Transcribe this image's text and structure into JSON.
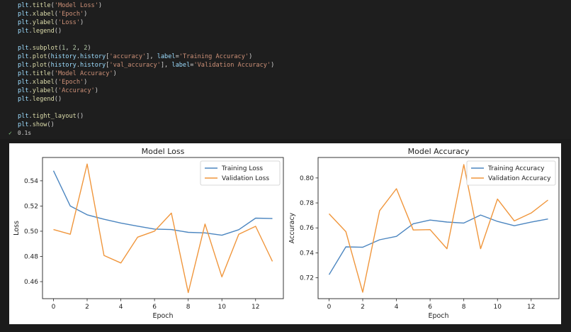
{
  "code": {
    "lines": [
      [
        {
          "t": "plt",
          "c": "tk-var"
        },
        {
          "t": "."
        },
        {
          "t": "title",
          "c": "tk-fn"
        },
        {
          "t": "("
        },
        {
          "t": "'Model Loss'",
          "c": "tk-str"
        },
        {
          "t": ")"
        }
      ],
      [
        {
          "t": "plt",
          "c": "tk-var"
        },
        {
          "t": "."
        },
        {
          "t": "xlabel",
          "c": "tk-fn"
        },
        {
          "t": "("
        },
        {
          "t": "'Epoch'",
          "c": "tk-str"
        },
        {
          "t": ")"
        }
      ],
      [
        {
          "t": "plt",
          "c": "tk-var"
        },
        {
          "t": "."
        },
        {
          "t": "ylabel",
          "c": "tk-fn"
        },
        {
          "t": "("
        },
        {
          "t": "'Loss'",
          "c": "tk-str"
        },
        {
          "t": ")"
        }
      ],
      [
        {
          "t": "plt",
          "c": "tk-var"
        },
        {
          "t": "."
        },
        {
          "t": "legend",
          "c": "tk-fn"
        },
        {
          "t": "()"
        }
      ],
      [],
      [
        {
          "t": "plt",
          "c": "tk-var"
        },
        {
          "t": "."
        },
        {
          "t": "subplot",
          "c": "tk-fn"
        },
        {
          "t": "("
        },
        {
          "t": "1",
          "c": "tk-num"
        },
        {
          "t": ", "
        },
        {
          "t": "2",
          "c": "tk-num"
        },
        {
          "t": ", "
        },
        {
          "t": "2",
          "c": "tk-num"
        },
        {
          "t": ")"
        }
      ],
      [
        {
          "t": "plt",
          "c": "tk-var"
        },
        {
          "t": "."
        },
        {
          "t": "plot",
          "c": "tk-fn"
        },
        {
          "t": "("
        },
        {
          "t": "history",
          "c": "tk-var"
        },
        {
          "t": "."
        },
        {
          "t": "history",
          "c": "tk-var"
        },
        {
          "t": "["
        },
        {
          "t": "'accuracy'",
          "c": "tk-str"
        },
        {
          "t": "], "
        },
        {
          "t": "label",
          "c": "tk-var"
        },
        {
          "t": "="
        },
        {
          "t": "'Training Accuracy'",
          "c": "tk-str"
        },
        {
          "t": ")"
        }
      ],
      [
        {
          "t": "plt",
          "c": "tk-var"
        },
        {
          "t": "."
        },
        {
          "t": "plot",
          "c": "tk-fn"
        },
        {
          "t": "("
        },
        {
          "t": "history",
          "c": "tk-var"
        },
        {
          "t": "."
        },
        {
          "t": "history",
          "c": "tk-var"
        },
        {
          "t": "["
        },
        {
          "t": "'val_accuracy'",
          "c": "tk-str"
        },
        {
          "t": "], "
        },
        {
          "t": "label",
          "c": "tk-var"
        },
        {
          "t": "="
        },
        {
          "t": "'Validation Accuracy'",
          "c": "tk-str"
        },
        {
          "t": ")"
        }
      ],
      [
        {
          "t": "plt",
          "c": "tk-var"
        },
        {
          "t": "."
        },
        {
          "t": "title",
          "c": "tk-fn"
        },
        {
          "t": "("
        },
        {
          "t": "'Model Accuracy'",
          "c": "tk-str"
        },
        {
          "t": ")"
        }
      ],
      [
        {
          "t": "plt",
          "c": "tk-var"
        },
        {
          "t": "."
        },
        {
          "t": "xlabel",
          "c": "tk-fn"
        },
        {
          "t": "("
        },
        {
          "t": "'Epoch'",
          "c": "tk-str"
        },
        {
          "t": ")"
        }
      ],
      [
        {
          "t": "plt",
          "c": "tk-var"
        },
        {
          "t": "."
        },
        {
          "t": "ylabel",
          "c": "tk-fn"
        },
        {
          "t": "("
        },
        {
          "t": "'Accuracy'",
          "c": "tk-str"
        },
        {
          "t": ")"
        }
      ],
      [
        {
          "t": "plt",
          "c": "tk-var"
        },
        {
          "t": "."
        },
        {
          "t": "legend",
          "c": "tk-fn"
        },
        {
          "t": "()"
        }
      ],
      [],
      [
        {
          "t": "plt",
          "c": "tk-var"
        },
        {
          "t": "."
        },
        {
          "t": "tight_layout",
          "c": "tk-fn"
        },
        {
          "t": "()"
        }
      ],
      [
        {
          "t": "plt",
          "c": "tk-var"
        },
        {
          "t": "."
        },
        {
          "t": "show",
          "c": "tk-fn"
        },
        {
          "t": "()"
        }
      ]
    ]
  },
  "status": {
    "check": "✓",
    "time": "0.1s"
  },
  "colors": {
    "training": "#4c86c0",
    "validation": "#f0963c",
    "editor_bg": "#1e1e1e"
  },
  "chart_data": [
    {
      "type": "line",
      "title": "Model Loss",
      "xlabel": "Epoch",
      "ylabel": "Loss",
      "x": [
        0,
        1,
        2,
        3,
        4,
        5,
        6,
        7,
        8,
        9,
        10,
        11,
        12,
        13
      ],
      "xlim": [
        -0.65,
        13.65
      ],
      "ylim": [
        0.4465,
        0.5585
      ],
      "xticks": [
        0,
        2,
        4,
        6,
        8,
        10,
        12
      ],
      "yticks": [
        0.46,
        0.48,
        0.5,
        0.52,
        0.54
      ],
      "ytick_labels": [
        "0.46",
        "0.48",
        "0.50",
        "0.52",
        "0.54"
      ],
      "legend": "top-right",
      "grid": false,
      "series": [
        {
          "name": "Training Loss",
          "color": "#4c86c0",
          "values": [
            0.548,
            0.52,
            0.513,
            0.5095,
            0.5065,
            0.504,
            0.5017,
            0.5013,
            0.4991,
            0.4987,
            0.4968,
            0.5012,
            0.5104,
            0.5101
          ]
        },
        {
          "name": "Validation Loss",
          "color": "#f0963c",
          "values": [
            0.5013,
            0.4976,
            0.5533,
            0.4808,
            0.4748,
            0.4953,
            0.5001,
            0.5144,
            0.4513,
            0.5057,
            0.4638,
            0.4976,
            0.5039,
            0.4761
          ]
        }
      ]
    },
    {
      "type": "line",
      "title": "Model Accuracy",
      "xlabel": "Epoch",
      "ylabel": "Accuracy",
      "x": [
        0,
        1,
        2,
        3,
        4,
        5,
        6,
        7,
        8,
        9,
        10,
        11,
        12,
        13
      ],
      "xlim": [
        -0.65,
        13.65
      ],
      "ylim": [
        0.7033,
        0.8164
      ],
      "xticks": [
        0,
        2,
        4,
        6,
        8,
        10,
        12
      ],
      "yticks": [
        0.72,
        0.74,
        0.76,
        0.78,
        0.8
      ],
      "ytick_labels": [
        "0.72",
        "0.74",
        "0.76",
        "0.78",
        "0.80"
      ],
      "legend": "top-right",
      "grid": false,
      "series": [
        {
          "name": "Training Accuracy",
          "color": "#4c86c0",
          "values": [
            0.7225,
            0.7448,
            0.7445,
            0.7505,
            0.7532,
            0.7633,
            0.7663,
            0.7647,
            0.7639,
            0.7703,
            0.7652,
            0.7617,
            0.7646,
            0.7671
          ]
        },
        {
          "name": "Validation Accuracy",
          "color": "#f0963c",
          "values": [
            0.7713,
            0.757,
            0.7085,
            0.7737,
            0.7914,
            0.7583,
            0.7586,
            0.7433,
            0.8107,
            0.7433,
            0.7831,
            0.7656,
            0.7719,
            0.7823
          ]
        }
      ]
    }
  ]
}
